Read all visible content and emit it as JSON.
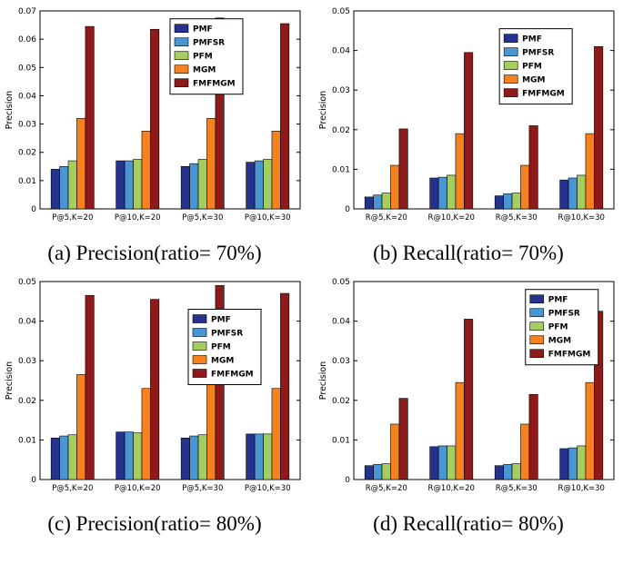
{
  "chart_data": [
    {
      "type": "bar",
      "caption": "(a) Precision(ratio= 70%)",
      "ylabel": "Precision",
      "xlabel": "",
      "ylim": [
        0,
        0.07
      ],
      "ytick": 0.01,
      "grid": false,
      "legend_position": "inside-top-center",
      "legend": {
        "x": 0.5,
        "y": 0.04
      },
      "categories": [
        "P@5,K=20",
        "P@10,K=20",
        "P@5,K=30",
        "P@10,K=30"
      ],
      "series": [
        {
          "name": "PMF",
          "color": "#25338e",
          "values": [
            0.014,
            0.017,
            0.015,
            0.0165
          ]
        },
        {
          "name": "PMFSR",
          "color": "#4a96d2",
          "values": [
            0.015,
            0.017,
            0.016,
            0.017
          ]
        },
        {
          "name": "PFM",
          "color": "#a5cd5f",
          "values": [
            0.017,
            0.0175,
            0.0175,
            0.0175
          ]
        },
        {
          "name": "MGM",
          "color": "#f5821f",
          "values": [
            0.032,
            0.0275,
            0.032,
            0.0275
          ]
        },
        {
          "name": "FMFMGM",
          "color": "#8e1a1a",
          "values": [
            0.0645,
            0.0635,
            0.0675,
            0.0655
          ]
        }
      ]
    },
    {
      "type": "bar",
      "caption": "(b) Recall(ratio= 70%)",
      "ylabel": "Precision",
      "xlabel": "",
      "ylim": [
        0,
        0.05
      ],
      "ytick": 0.01,
      "grid": false,
      "legend_position": "inside-top-right",
      "legend": {
        "x": 0.56,
        "y": 0.09
      },
      "categories": [
        "R@5,K=20",
        "R@10,K=20",
        "R@5,K=30",
        "R@10,K=30"
      ],
      "series": [
        {
          "name": "PMF",
          "color": "#25338e",
          "values": [
            0.003,
            0.0078,
            0.0033,
            0.0073
          ]
        },
        {
          "name": "PMFSR",
          "color": "#4a96d2",
          "values": [
            0.0035,
            0.008,
            0.0038,
            0.0078
          ]
        },
        {
          "name": "PFM",
          "color": "#a5cd5f",
          "values": [
            0.004,
            0.0085,
            0.004,
            0.0085
          ]
        },
        {
          "name": "MGM",
          "color": "#f5821f",
          "values": [
            0.011,
            0.019,
            0.011,
            0.019
          ]
        },
        {
          "name": "FMFMGM",
          "color": "#8e1a1a",
          "values": [
            0.0202,
            0.0395,
            0.021,
            0.041
          ]
        }
      ]
    },
    {
      "type": "bar",
      "caption": "(c) Precision(ratio= 80%)",
      "ylabel": "Precision",
      "xlabel": "",
      "ylim": [
        0,
        0.05
      ],
      "ytick": 0.01,
      "grid": false,
      "legend_position": "inside-middle-right",
      "legend": {
        "x": 0.57,
        "y": 0.14
      },
      "categories": [
        "P@5,K=20",
        "P@10,K=20",
        "P@5,K=30",
        "P@10,K=30"
      ],
      "series": [
        {
          "name": "PMF",
          "color": "#25338e",
          "values": [
            0.0105,
            0.012,
            0.0105,
            0.0115
          ]
        },
        {
          "name": "PMFSR",
          "color": "#4a96d2",
          "values": [
            0.011,
            0.012,
            0.011,
            0.0115
          ]
        },
        {
          "name": "PFM",
          "color": "#a5cd5f",
          "values": [
            0.0113,
            0.0118,
            0.0113,
            0.0115
          ]
        },
        {
          "name": "MGM",
          "color": "#f5821f",
          "values": [
            0.0265,
            0.023,
            0.0265,
            0.023
          ]
        },
        {
          "name": "FMFMGM",
          "color": "#8e1a1a",
          "values": [
            0.0465,
            0.0455,
            0.049,
            0.047
          ]
        }
      ]
    },
    {
      "type": "bar",
      "caption": "(d) Recall(ratio= 80%)",
      "ylabel": "Precision",
      "xlabel": "",
      "ylim": [
        0,
        0.05
      ],
      "ytick": 0.01,
      "grid": false,
      "legend_position": "inside-top-right",
      "legend": {
        "x": 0.66,
        "y": 0.04
      },
      "categories": [
        "R@5,K=20",
        "R@10,K=20",
        "R@5,K=30",
        "R@10,K=30"
      ],
      "series": [
        {
          "name": "PMF",
          "color": "#25338e",
          "values": [
            0.0035,
            0.0083,
            0.0035,
            0.0078
          ]
        },
        {
          "name": "PMFSR",
          "color": "#4a96d2",
          "values": [
            0.0038,
            0.0085,
            0.0038,
            0.008
          ]
        },
        {
          "name": "PFM",
          "color": "#a5cd5f",
          "values": [
            0.004,
            0.0085,
            0.004,
            0.0085
          ]
        },
        {
          "name": "MGM",
          "color": "#f5821f",
          "values": [
            0.014,
            0.0245,
            0.014,
            0.0245
          ]
        },
        {
          "name": "FMFMGM",
          "color": "#8e1a1a",
          "values": [
            0.0205,
            0.0405,
            0.0215,
            0.0425
          ]
        }
      ]
    }
  ]
}
